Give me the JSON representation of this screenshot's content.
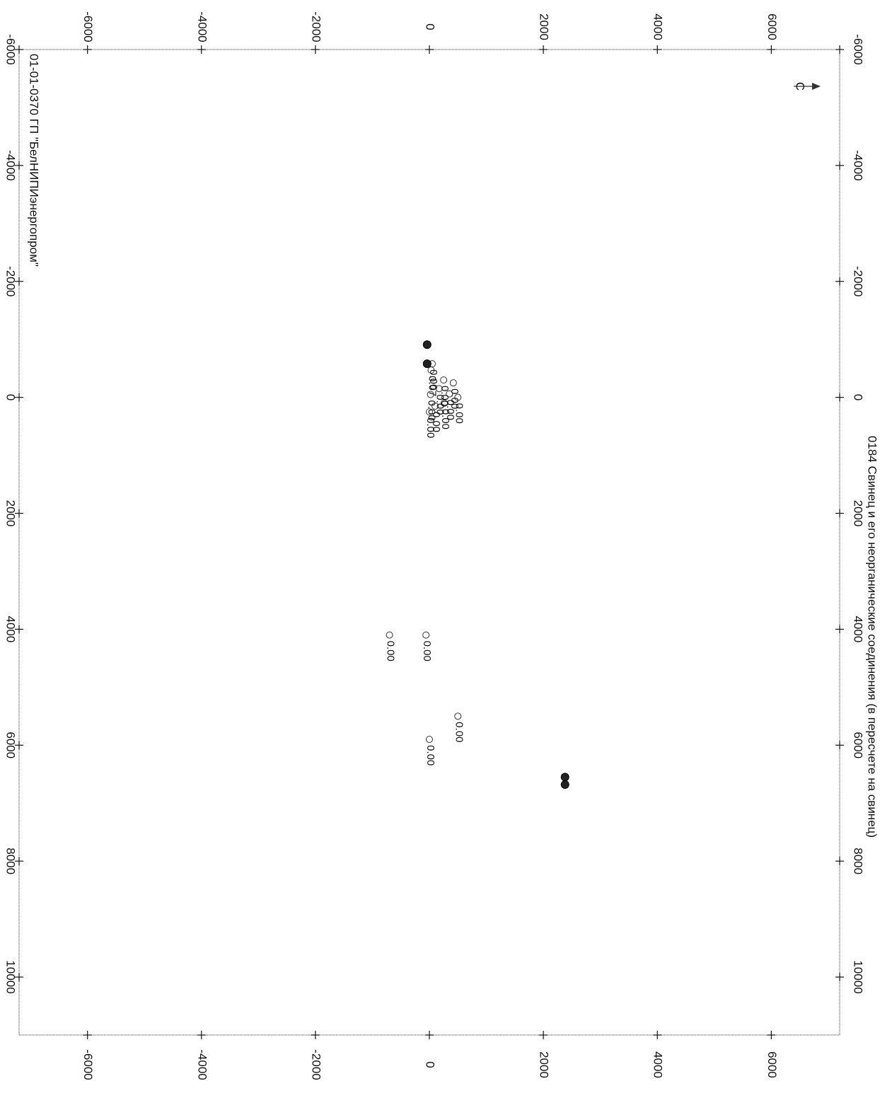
{
  "chart_data": {
    "type": "scatter",
    "title": "0184 Свинец и его неорганические соединения (в пересчете на свинец)",
    "footer": "01-01-0370 ГП \"БелНИПИэнергопром\"",
    "orientation": "rotated-90",
    "x_axis": {
      "range": [
        -6000,
        11000
      ],
      "ticks": [
        -6000,
        -4000,
        -2000,
        0,
        2000,
        4000,
        6000,
        8000,
        10000
      ],
      "tick_labels": [
        "-6000",
        "-4000",
        "-2000",
        "0",
        "2000",
        "4000",
        "6000",
        "8000",
        "10000"
      ]
    },
    "y_axis": {
      "range": [
        -7200,
        7200
      ],
      "ticks": [
        -6000,
        -4000,
        -2000,
        0,
        2000,
        4000,
        6000
      ],
      "tick_labels": [
        "-6000",
        "-4000",
        "-2000",
        "0",
        "2000",
        "4000",
        "6000"
      ]
    },
    "grid": false,
    "north_arrow": "С",
    "receptor_points": [
      {
        "x": -580,
        "y": 50,
        "label": "0.00"
      },
      {
        "x": -470,
        "y": 30,
        "label": "0.07"
      },
      {
        "x": -300,
        "y": 250,
        "label": "0.00"
      },
      {
        "x": -250,
        "y": 420,
        "label": "0.00"
      },
      {
        "x": -150,
        "y": 170,
        "label": "0.00"
      },
      {
        "x": -60,
        "y": 350,
        "label": "0.00"
      },
      {
        "x": 0,
        "y": 500,
        "label": "0.00"
      },
      {
        "x": -50,
        "y": 20,
        "label": "0.00"
      },
      {
        "x": 100,
        "y": 260,
        "label": "0.00"
      },
      {
        "x": 150,
        "y": 100,
        "label": "0.00"
      },
      {
        "x": 250,
        "y": 0,
        "label": "0.00"
      },
      {
        "x": 4100,
        "y": -60,
        "label": "0.00"
      },
      {
        "x": 4100,
        "y": -700,
        "label": "0.00"
      },
      {
        "x": 5500,
        "y": 500,
        "label": "0.00"
      },
      {
        "x": 5900,
        "y": 0,
        "label": "0.00"
      }
    ],
    "source_points": [
      {
        "x": -910,
        "y": -40
      },
      {
        "x": -580,
        "y": -40
      },
      {
        "x": 6550,
        "y": 2380
      },
      {
        "x": 6680,
        "y": 2380
      }
    ]
  }
}
